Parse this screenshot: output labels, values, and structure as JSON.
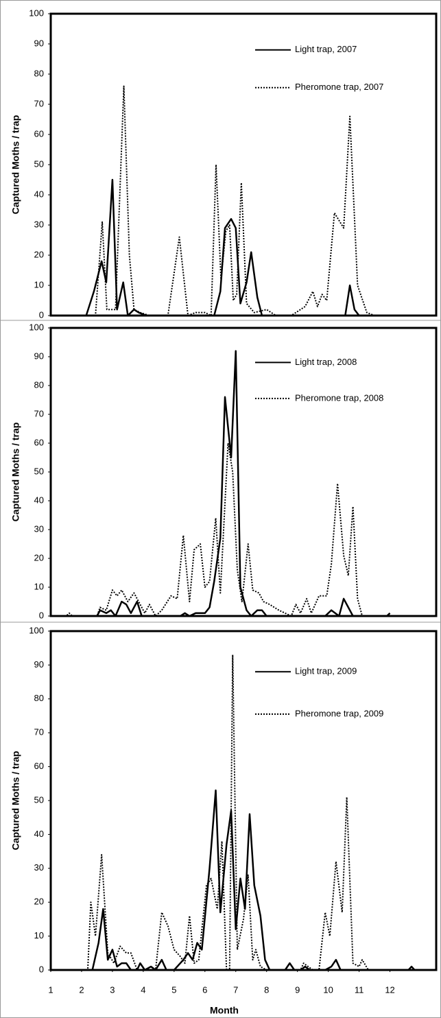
{
  "chart_data": [
    {
      "type": "line",
      "ylabel": "Captured Moths / trap",
      "xlim": [
        1,
        13.5
      ],
      "ylim": [
        0,
        100
      ],
      "yticks": [
        0,
        10,
        20,
        30,
        40,
        50,
        60,
        70,
        80,
        90,
        100
      ],
      "grid": false,
      "series": [
        {
          "name": "Light trap, 2007",
          "color": "#000000",
          "style": "solid",
          "x": [
            1.0,
            1.5,
            2.0,
            2.15,
            2.4,
            2.65,
            2.8,
            3.0,
            3.15,
            3.35,
            3.5,
            3.7,
            3.85,
            4.1,
            4.5,
            5.0,
            5.5,
            6.0,
            6.3,
            6.5,
            6.65,
            6.85,
            7.0,
            7.15,
            7.35,
            7.5,
            7.7,
            7.85,
            8.5,
            9.0,
            9.5,
            10.0,
            10.55,
            10.7,
            10.85,
            11.0,
            11.5,
            12.0
          ],
          "values": [
            0,
            0,
            0,
            0,
            8,
            18,
            11,
            45,
            2,
            11,
            0,
            2,
            1,
            0,
            0,
            0,
            0,
            0,
            0,
            8,
            29,
            32,
            29,
            4,
            11,
            21,
            6,
            0,
            0,
            0,
            0,
            0,
            0,
            10,
            2,
            0,
            0,
            0
          ]
        },
        {
          "name": "Pheromone trap, 2007",
          "color": "#000000",
          "style": "dotted",
          "x": [
            1.0,
            2.0,
            2.45,
            2.67,
            2.82,
            3.1,
            3.37,
            3.55,
            3.7,
            3.9,
            4.2,
            4.8,
            5.17,
            5.45,
            5.7,
            6.0,
            6.2,
            6.36,
            6.52,
            6.68,
            6.8,
            6.92,
            7.03,
            7.18,
            7.35,
            7.6,
            8.0,
            8.3,
            8.8,
            9.25,
            9.5,
            9.65,
            9.8,
            9.95,
            10.2,
            10.5,
            10.7,
            10.95,
            11.25,
            11.5,
            12.0
          ],
          "values": [
            0,
            0,
            0,
            31,
            2,
            2,
            76,
            20,
            2,
            1,
            0,
            0,
            26,
            0,
            1,
            1,
            0,
            50,
            12,
            28,
            30,
            5,
            7,
            44,
            4,
            1,
            2,
            0,
            0,
            3,
            8,
            3,
            7,
            5,
            34,
            29,
            66,
            10,
            1,
            0,
            0
          ]
        }
      ]
    },
    {
      "type": "line",
      "ylabel": "Captured Moths / trap",
      "xlim": [
        1,
        13.5
      ],
      "ylim": [
        0,
        100
      ],
      "yticks": [
        0,
        10,
        20,
        30,
        40,
        50,
        60,
        70,
        80,
        90,
        100
      ],
      "grid": false,
      "series": [
        {
          "name": "Light trap, 2008",
          "color": "#000000",
          "style": "solid",
          "x": [
            1.0,
            2.5,
            2.6,
            2.8,
            2.95,
            3.1,
            3.3,
            3.45,
            3.6,
            3.8,
            3.95,
            4.5,
            5.2,
            5.35,
            5.5,
            5.7,
            6.0,
            6.15,
            6.3,
            6.5,
            6.65,
            6.85,
            7.0,
            7.15,
            7.35,
            7.5,
            7.7,
            7.85,
            8.0,
            9.0,
            9.9,
            10.1,
            10.35,
            10.5,
            10.65,
            10.8,
            11.5,
            11.9,
            12.0
          ],
          "values": [
            0,
            0,
            2,
            1,
            2,
            0,
            5,
            4,
            1,
            5,
            0,
            0,
            0,
            1,
            0,
            1,
            1,
            3,
            12,
            27,
            76,
            55,
            92,
            10,
            2,
            0,
            2,
            2,
            0,
            0,
            0,
            2,
            0,
            6,
            3,
            0,
            0,
            0,
            1
          ]
        },
        {
          "name": "Pheromone trap, 2008",
          "color": "#000000",
          "style": "dotted",
          "x": [
            1.0,
            1.5,
            1.6,
            1.7,
            2.5,
            2.6,
            2.8,
            3.0,
            3.15,
            3.3,
            3.5,
            3.7,
            3.85,
            4.05,
            4.2,
            4.4,
            4.6,
            4.9,
            5.1,
            5.3,
            5.5,
            5.65,
            5.85,
            6.0,
            6.15,
            6.35,
            6.5,
            6.75,
            6.9,
            7.05,
            7.2,
            7.4,
            7.55,
            7.75,
            7.9,
            8.1,
            8.4,
            8.8,
            8.95,
            9.1,
            9.3,
            9.45,
            9.7,
            9.95,
            10.1,
            10.3,
            10.5,
            10.65,
            10.8,
            10.95,
            11.1,
            12.0
          ],
          "values": [
            0,
            0,
            1,
            0,
            0,
            3,
            2,
            9,
            7,
            9,
            5,
            8,
            5,
            1,
            4,
            0,
            2,
            7,
            6,
            28,
            5,
            23,
            25,
            10,
            12,
            34,
            8,
            60,
            50,
            16,
            5,
            25,
            9,
            8,
            5,
            4,
            2,
            0,
            4,
            1,
            6,
            1,
            7,
            7,
            18,
            46,
            21,
            14,
            38,
            6,
            0,
            0
          ]
        }
      ]
    },
    {
      "type": "line",
      "ylabel": "Captured Moths / trap",
      "xlabel": "Month",
      "xlim": [
        1,
        13.5
      ],
      "ylim": [
        0,
        100
      ],
      "yticks": [
        0,
        10,
        20,
        30,
        40,
        50,
        60,
        70,
        80,
        90,
        100
      ],
      "xticks": [
        1,
        2,
        3,
        4,
        5,
        6,
        7,
        8,
        9,
        10,
        11,
        12
      ],
      "grid": false,
      "series": [
        {
          "name": "Light trap, 2009",
          "color": "#000000",
          "style": "solid",
          "x": [
            1.0,
            2.35,
            2.55,
            2.7,
            2.85,
            3.0,
            3.15,
            3.3,
            3.45,
            3.6,
            3.8,
            3.9,
            4.05,
            4.25,
            4.4,
            4.6,
            4.75,
            5.0,
            5.3,
            5.45,
            5.6,
            5.75,
            5.9,
            6.15,
            6.35,
            6.5,
            6.7,
            6.85,
            7.0,
            7.15,
            7.3,
            7.45,
            7.6,
            7.8,
            7.95,
            8.1,
            8.6,
            8.75,
            8.9,
            9.1,
            9.25,
            9.4,
            9.9,
            10.1,
            10.25,
            10.4,
            12.6,
            12.7,
            12.8
          ],
          "values": [
            0,
            0,
            8,
            18,
            3,
            6,
            1,
            2,
            2,
            0,
            0,
            2,
            0,
            1,
            0,
            3,
            0,
            0,
            3,
            5,
            3,
            8,
            6,
            30,
            53,
            17,
            37,
            47,
            12,
            27,
            18,
            46,
            25,
            16,
            3,
            0,
            0,
            2,
            0,
            0,
            1,
            0,
            0,
            1,
            3,
            0,
            0,
            1,
            0
          ]
        },
        {
          "name": "Pheromone trap, 2009",
          "color": "#000000",
          "style": "dotted",
          "x": [
            1.0,
            2.2,
            2.3,
            2.45,
            2.65,
            2.85,
            3.05,
            3.25,
            3.45,
            3.6,
            3.8,
            4.4,
            4.6,
            4.8,
            5.0,
            5.2,
            5.35,
            5.5,
            5.65,
            5.8,
            6.05,
            6.2,
            6.4,
            6.55,
            6.7,
            6.8,
            6.9,
            7.05,
            7.25,
            7.4,
            7.55,
            7.65,
            7.8,
            8.0,
            9.1,
            9.2,
            9.35,
            9.5,
            9.7,
            9.9,
            10.05,
            10.25,
            10.45,
            10.6,
            10.8,
            11.0,
            11.1,
            11.3,
            12.0
          ],
          "values": [
            0,
            0,
            20,
            10,
            34,
            5,
            2,
            7,
            5,
            5,
            0,
            0,
            17,
            13,
            6,
            4,
            2,
            16,
            2,
            3,
            25,
            27,
            18,
            38,
            0,
            0,
            93,
            6,
            15,
            28,
            3,
            6,
            1,
            0,
            0,
            2,
            1,
            0,
            0,
            17,
            10,
            32,
            17,
            51,
            2,
            1,
            3,
            0,
            0
          ]
        }
      ]
    }
  ]
}
